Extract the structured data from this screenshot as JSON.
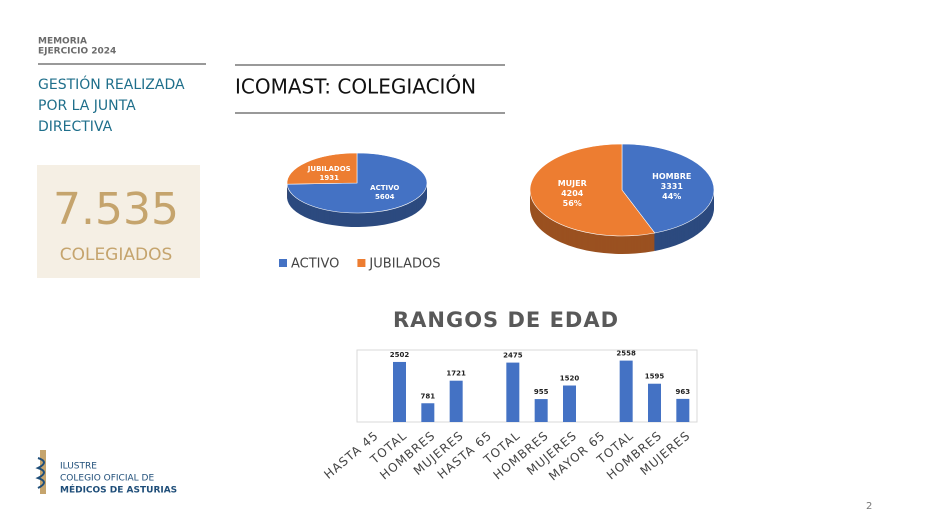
{
  "header": {
    "lines": [
      "MEMORIA",
      "EJERCICIO 2024"
    ]
  },
  "section": {
    "lines": [
      "GESTIÓN REALIZADA",
      "POR LA JUNTA",
      "DIRECTIVA"
    ]
  },
  "heading": "ICOMAST: COLEGIACIÓN",
  "stat": {
    "number": "7.535",
    "label": "COLEGIADOS"
  },
  "logo": {
    "lines": [
      "ILUSTRE",
      "COLEGIO OFICIAL DE",
      "MÉDICOS DE ASTURIAS"
    ]
  },
  "page_number": "2",
  "chart_data": [
    {
      "type": "pie",
      "categories": [
        "ACTIVO",
        "JUBILADOS"
      ],
      "values": [
        5604,
        1931
      ],
      "colors": [
        "#4472c4",
        "#ed7d31"
      ],
      "legend": "bottom"
    },
    {
      "type": "pie",
      "categories": [
        "HOMBRE",
        "MUJER"
      ],
      "values": [
        3331,
        4204
      ],
      "percentages": [
        "44%",
        "56%"
      ],
      "colors": [
        "#4472c4",
        "#ed7d31"
      ]
    },
    {
      "type": "bar",
      "title": "RANGOS DE EDAD",
      "categories": [
        "HASTA 45",
        "TOTAL",
        "HOMBRES",
        "MUJERES",
        "HASTA 65",
        "TOTAL",
        "HOMBRES",
        "MUJERES",
        "MAYOR 65",
        "TOTAL",
        "HOMBRES",
        "MUJERES"
      ],
      "values": [
        null,
        2502,
        781,
        1721,
        null,
        2475,
        955,
        1520,
        null,
        2558,
        1595,
        963
      ],
      "color": "#4472c4",
      "ylim": [
        0,
        3000
      ]
    }
  ]
}
